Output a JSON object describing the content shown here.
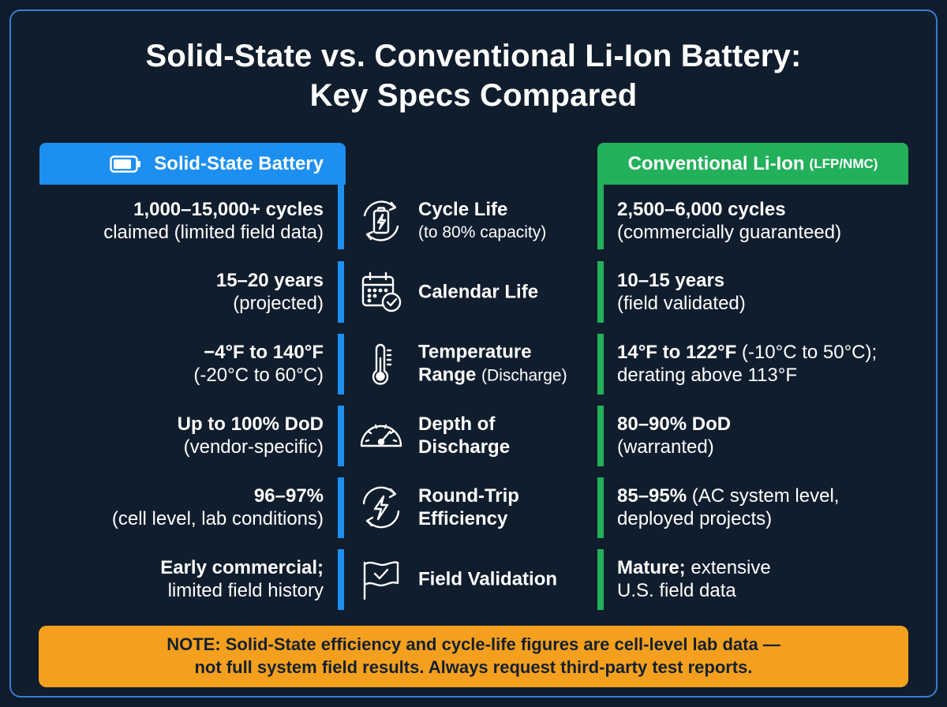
{
  "title": {
    "line1": "Solid-State vs. Conventional Li-Ion Battery:",
    "line2": "Key Specs Compared"
  },
  "left_header": {
    "label": "Solid-State Battery",
    "icon": "battery-icon",
    "color": "#1d8ff0"
  },
  "right_header": {
    "label": "Conventional Li-Ion",
    "sub": "(LFP/NMC)",
    "color": "#23b05a"
  },
  "rows": [
    {
      "left": {
        "line1": "1,000–15,000+ cycles",
        "line2": "claimed (limited field data)"
      },
      "metric": {
        "icon": "cycle-battery-icon",
        "line1": "Cycle Life",
        "line2": "(to 80% capacity)"
      },
      "right": {
        "line1": "2,500–6,000 cycles",
        "line2": "(commercially guaranteed)"
      }
    },
    {
      "left": {
        "line1": "15–20 years",
        "line2": "(projected)"
      },
      "metric": {
        "icon": "calendar-check-icon",
        "line1": "Calendar Life",
        "line2": ""
      },
      "right": {
        "line1": "10–15 years",
        "line2": "(field validated)"
      }
    },
    {
      "left": {
        "line1": "−4°F to 140°F",
        "line2": "(-20°C to 60°C)"
      },
      "metric": {
        "icon": "thermometer-icon",
        "line1": "Temperature",
        "line2a": "Range",
        "line2b": "(Discharge)"
      },
      "right": {
        "line1a": "14°F to 122°F",
        "line1b": "(-10°C to 50°C);",
        "line2": "derating above 113°F"
      }
    },
    {
      "left": {
        "line1": "Up to 100% DoD",
        "line2": "(vendor-specific)"
      },
      "metric": {
        "icon": "gauge-icon",
        "line1": "Depth of",
        "line2": "Discharge"
      },
      "right": {
        "line1": "80–90% DoD",
        "line2": "(warranted)"
      }
    },
    {
      "left": {
        "line1": "96–97%",
        "line2": "(cell level, lab conditions)"
      },
      "metric": {
        "icon": "lightning-cycle-icon",
        "line1": "Round-Trip",
        "line2": "Efficiency"
      },
      "right": {
        "line1a": "85–95%",
        "line1b": "(AC system level,",
        "line2": "deployed projects)"
      }
    },
    {
      "left": {
        "line1": "Early commercial;",
        "line2": "limited field history"
      },
      "metric": {
        "icon": "flag-check-icon",
        "line1": "Field Validation",
        "line2": ""
      },
      "right": {
        "line1a": "Mature;",
        "line1b": "extensive",
        "line2": "U.S. field data"
      }
    }
  ],
  "note": {
    "line1": "NOTE: Solid-State efficiency and cycle-life figures are cell-level lab data —",
    "line2": "not full system field results. Always request third-party test reports.",
    "color": "#f4a01e"
  }
}
